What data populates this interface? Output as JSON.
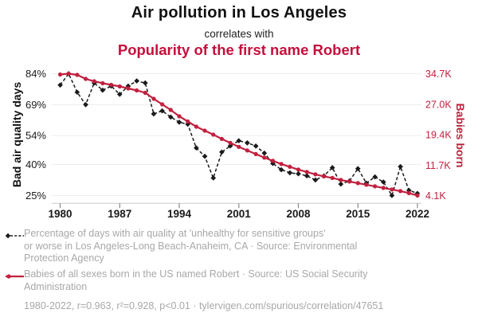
{
  "header": {
    "title": "Air pollution in Los Angeles",
    "subtitle": "correlates with",
    "correlation_title": "Popularity of the first name Robert"
  },
  "colors": {
    "crimson": "#c2203e",
    "title_red": "#c50f3c",
    "series_black": "#1a1a1a",
    "legend_gray": "#a8a8a8"
  },
  "chart_data": {
    "type": "line",
    "x": [
      1980,
      1981,
      1982,
      1983,
      1984,
      1985,
      1986,
      1987,
      1988,
      1989,
      1990,
      1991,
      1992,
      1993,
      1994,
      1995,
      1996,
      1997,
      1998,
      1999,
      2000,
      2001,
      2002,
      2003,
      2004,
      2005,
      2006,
      2007,
      2008,
      2009,
      2010,
      2011,
      2012,
      2013,
      2014,
      2015,
      2016,
      2017,
      2018,
      2019,
      2020,
      2021,
      2022
    ],
    "series": [
      {
        "name": "Bad air quality days (%)",
        "axis": "left",
        "color": "#1a1a1a",
        "style": "dashed-diamond",
        "values": [
          78.5,
          84,
          75,
          69,
          79.5,
          76,
          78,
          74,
          78,
          80.5,
          79.5,
          64.5,
          66,
          63,
          60.5,
          59.5,
          48,
          44,
          33.5,
          46,
          49,
          51.5,
          50.5,
          49,
          45.5,
          40.5,
          37.5,
          36,
          35.5,
          34.5,
          32.5,
          34.5,
          38.5,
          30.5,
          32,
          38,
          31,
          34,
          31.5,
          25,
          39,
          27.5,
          26
        ]
      },
      {
        "name": "Babies born named Robert (thousands)",
        "axis": "right",
        "color": "#c2203e",
        "style": "solid-dot",
        "values": [
          34.5,
          34.7,
          34.4,
          33.4,
          32.8,
          32.3,
          31.9,
          31.5,
          31.0,
          30.5,
          29.9,
          28.4,
          27.0,
          25.6,
          24.0,
          22.7,
          21.4,
          20.4,
          19.4,
          18.3,
          17.3,
          16.3,
          15.4,
          14.5,
          13.6,
          12.8,
          12.0,
          11.3,
          10.6,
          10.0,
          9.4,
          8.9,
          8.5,
          8.0,
          7.6,
          7.2,
          6.8,
          6.4,
          6.0,
          5.6,
          5.2,
          4.7,
          4.1
        ]
      }
    ],
    "left_axis": {
      "label": "Bad air quality days",
      "ticks": [
        "84%",
        "69%",
        "54%",
        "40%",
        "25%"
      ],
      "tick_values": [
        84,
        69,
        54,
        40,
        25
      ],
      "range": [
        25,
        84
      ]
    },
    "right_axis": {
      "label": "Babies born",
      "ticks": [
        "34.7K",
        "27.0K",
        "19.4K",
        "11.7K",
        "4.1K"
      ],
      "tick_values": [
        34.7,
        27.0,
        19.4,
        11.7,
        4.1
      ],
      "range": [
        4.1,
        34.7
      ]
    },
    "x_axis": {
      "ticks": [
        1980,
        1987,
        1994,
        2001,
        2008,
        2015,
        2022
      ]
    },
    "grid": "horizontal-only",
    "legend_position": "bottom"
  },
  "legend": [
    {
      "text": "Percentage of days with air quality at 'unhealthy for sensitive groups'\nor worse in Los Angeles-Long Beach-Anaheim, CA · Source: Environmental\nProtection Agency"
    },
    {
      "text": "Babies of all sexes born in the US named Robert · Source: US Social Security\nAdministration"
    }
  ],
  "footer": {
    "text": "1980-2022, r=0.963, r²=0.928, p<0.01 · tylervigen.com/spurious/correlation/47651"
  }
}
